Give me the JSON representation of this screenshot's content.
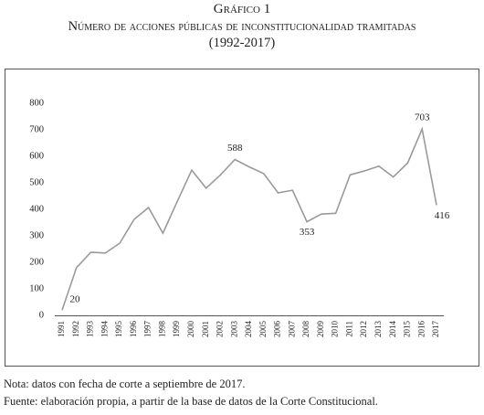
{
  "chart_data": {
    "type": "line",
    "title": "Gráfico 1",
    "subtitle": "Número de acciones públicas de inconstitucionalidad tramitadas (1992-2017)",
    "categories": [
      "1991",
      "1992",
      "1993",
      "1994",
      "1995",
      "1996",
      "1997",
      "1998",
      "1999",
      "2000",
      "2001",
      "2002",
      "2003",
      "2004",
      "2005",
      "2006",
      "2007",
      "2008",
      "2009",
      "2010",
      "2011",
      "2012",
      "2013",
      "2014",
      "2015",
      "2016",
      "2017"
    ],
    "values": [
      20,
      180,
      238,
      235,
      272,
      362,
      407,
      310,
      430,
      548,
      480,
      530,
      588,
      560,
      535,
      462,
      472,
      353,
      382,
      385,
      530,
      545,
      563,
      522,
      575,
      703,
      416
    ],
    "value_labels": [
      "20",
      null,
      null,
      null,
      null,
      null,
      null,
      null,
      null,
      null,
      null,
      null,
      "588",
      null,
      null,
      null,
      null,
      "353",
      null,
      null,
      null,
      null,
      null,
      null,
      null,
      "703",
      "416"
    ],
    "color": "#9a9a9a",
    "ylim": [
      0,
      800
    ],
    "yticks": [
      0,
      100,
      200,
      300,
      400,
      500,
      600,
      700,
      800
    ],
    "grid": false
  },
  "notes": [
    "Nota: datos con fecha de corte a septiembre de 2017.",
    "Fuente: elaboración propia, a partir de la base de datos de la Corte Constitucional."
  ]
}
